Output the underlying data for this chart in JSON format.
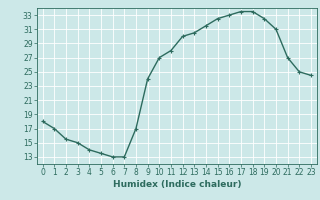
{
  "x": [
    0,
    1,
    2,
    3,
    4,
    5,
    6,
    7,
    8,
    9,
    10,
    11,
    12,
    13,
    14,
    15,
    16,
    17,
    18,
    19,
    20,
    21,
    22,
    23
  ],
  "y": [
    18,
    17,
    15.5,
    15,
    14,
    13.5,
    13,
    13,
    17,
    24,
    27,
    28,
    30,
    30.5,
    31.5,
    32.5,
    33,
    33.5,
    33.5,
    32.5,
    31,
    27,
    25,
    24.5
  ],
  "line_color": "#2d6b5e",
  "marker": "+",
  "marker_size": 3,
  "bg_color": "#cce8e8",
  "grid_color": "#ffffff",
  "xlabel": "Humidex (Indice chaleur)",
  "xlim": [
    -0.5,
    23.5
  ],
  "ylim": [
    12,
    34
  ],
  "yticks": [
    13,
    15,
    17,
    19,
    21,
    23,
    25,
    27,
    29,
    31,
    33
  ],
  "xticks": [
    0,
    1,
    2,
    3,
    4,
    5,
    6,
    7,
    8,
    9,
    10,
    11,
    12,
    13,
    14,
    15,
    16,
    17,
    18,
    19,
    20,
    21,
    22,
    23
  ],
  "tick_fontsize": 5.5,
  "label_fontsize": 6.5,
  "line_width": 1.0
}
